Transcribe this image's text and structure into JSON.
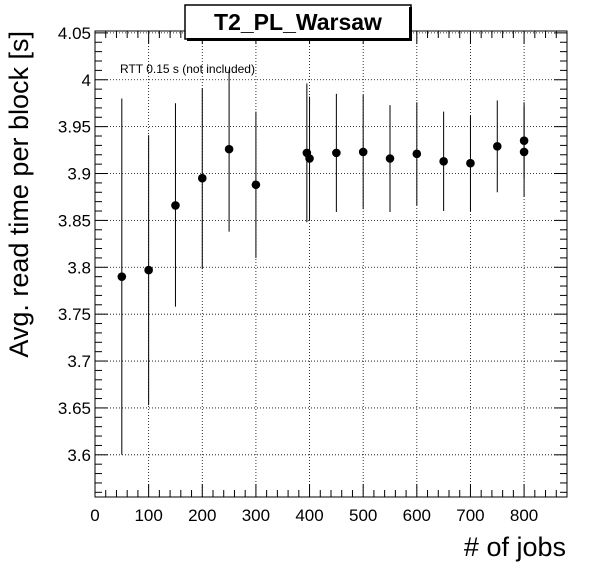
{
  "chart_data": {
    "type": "scatter",
    "title": "T2_PL_Warsaw",
    "xlabel": "# of jobs",
    "ylabel": "Avg. read time per block [s]",
    "annotation": "RTT 0.15 s (not included)",
    "xlim": [
      0,
      880
    ],
    "ylim": [
      3.555,
      4.052
    ],
    "xticks": [
      0,
      100,
      200,
      300,
      400,
      500,
      600,
      700,
      800
    ],
    "xtick_labels": [
      "0",
      "100",
      "200",
      "300",
      "400",
      "500",
      "600",
      "700",
      "800"
    ],
    "yticks": [
      3.6,
      3.65,
      3.7,
      3.75,
      3.8,
      3.85,
      3.9,
      3.95,
      4.0,
      4.05
    ],
    "ytick_labels": [
      "3.6",
      "3.65",
      "3.7",
      "3.75",
      "3.8",
      "3.85",
      "3.9",
      "3.95",
      "4",
      "4.05"
    ],
    "grid": true,
    "points": [
      {
        "x": 50,
        "y": 3.79,
        "ylo": 3.6,
        "yhi": 3.98
      },
      {
        "x": 100,
        "y": 3.797,
        "ylo": 3.653,
        "yhi": 3.941
      },
      {
        "x": 150,
        "y": 3.866,
        "ylo": 3.758,
        "yhi": 3.975
      },
      {
        "x": 200,
        "y": 3.895,
        "ylo": 3.798,
        "yhi": 3.991
      },
      {
        "x": 250,
        "y": 3.926,
        "ylo": 3.838,
        "yhi": 4.011
      },
      {
        "x": 300,
        "y": 3.888,
        "ylo": 3.81,
        "yhi": 3.966
      },
      {
        "x": 395,
        "y": 3.922,
        "ylo": 3.848,
        "yhi": 3.996
      },
      {
        "x": 400,
        "y": 3.916,
        "ylo": 3.85,
        "yhi": 3.982
      },
      {
        "x": 450,
        "y": 3.922,
        "ylo": 3.859,
        "yhi": 3.985
      },
      {
        "x": 500,
        "y": 3.923,
        "ylo": 3.862,
        "yhi": 3.984
      },
      {
        "x": 550,
        "y": 3.916,
        "ylo": 3.859,
        "yhi": 3.973
      },
      {
        "x": 600,
        "y": 3.921,
        "ylo": 3.866,
        "yhi": 3.976
      },
      {
        "x": 650,
        "y": 3.913,
        "ylo": 3.86,
        "yhi": 3.966
      },
      {
        "x": 700,
        "y": 3.911,
        "ylo": 3.86,
        "yhi": 3.962
      },
      {
        "x": 750,
        "y": 3.929,
        "ylo": 3.88,
        "yhi": 3.978
      },
      {
        "x": 800,
        "y": 3.935,
        "ylo": 3.895,
        "yhi": 3.976
      },
      {
        "x": 800,
        "y": 3.923,
        "ylo": 3.875,
        "yhi": 3.971
      }
    ],
    "colors": {
      "marker": "#000000",
      "axis": "#000000",
      "grid": "#000000",
      "background": "#ffffff"
    }
  }
}
